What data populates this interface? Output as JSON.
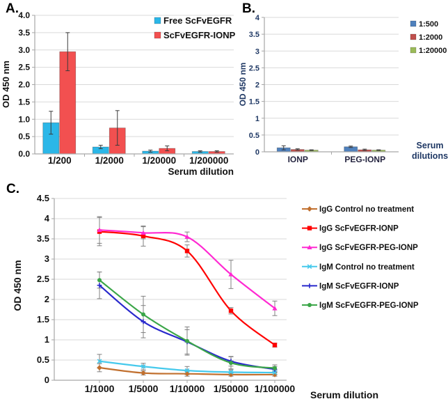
{
  "figure": {
    "panels": {
      "a": {
        "label": "A."
      },
      "b": {
        "label": "B."
      },
      "c": {
        "label": "C."
      }
    }
  },
  "chart_data": [
    {
      "id": "panel-a",
      "type": "bar",
      "title": "",
      "ylabel": "OD 450 nm",
      "xlabel": "Serum dilution",
      "ylim": [
        0,
        4.0
      ],
      "yticks": [
        "0.0",
        "0.5",
        "1.0",
        "1.5",
        "2.0",
        "2.5",
        "3.0",
        "3.5",
        "4.0"
      ],
      "grid": true,
      "legend_position": "inside-top-right",
      "categories": [
        "1/200",
        "1/2000",
        "1/20000",
        "1/200000"
      ],
      "series": [
        {
          "name": "Free ScFvEGFR",
          "color": "#2BB7E8",
          "values": [
            0.9,
            0.2,
            0.08,
            0.07
          ],
          "errors": [
            0.33,
            0.05,
            0.03,
            0.02
          ]
        },
        {
          "name": "ScFvEGFR-IONP",
          "color": "#F25050",
          "values": [
            2.95,
            0.75,
            0.16,
            0.07
          ],
          "errors": [
            0.55,
            0.5,
            0.07,
            0.02
          ]
        }
      ]
    },
    {
      "id": "panel-b",
      "type": "bar",
      "title": "",
      "ylabel": "OD 450 nm",
      "xlabel": "Serum dilutions",
      "ylim": [
        0,
        4
      ],
      "yticks": [
        "0",
        "0.5",
        "1",
        "1.5",
        "2",
        "2.5",
        "3",
        "3.5",
        "4"
      ],
      "grid": true,
      "legend_position": "right",
      "axis_text_color": "#1F3864",
      "categories": [
        "IONP",
        "PEG-IONP"
      ],
      "series": [
        {
          "name": "1:500",
          "color": "#4F81BD",
          "values": [
            0.12,
            0.15
          ],
          "errors": [
            0.06,
            0.02
          ]
        },
        {
          "name": "1:2000",
          "color": "#C0504D",
          "values": [
            0.07,
            0.06
          ],
          "errors": [
            0.02,
            0.02
          ]
        },
        {
          "name": "1:20000",
          "color": "#9BBB59",
          "values": [
            0.05,
            0.05
          ],
          "errors": [
            0.01,
            0.01
          ]
        }
      ]
    },
    {
      "id": "panel-c",
      "type": "line",
      "title": "",
      "ylabel": "OD 450 nm",
      "xlabel": "Serum dilution",
      "ylim": [
        0,
        4.5
      ],
      "yticks": [
        "0",
        "0.5",
        "1",
        "1.5",
        "2",
        "2.5",
        "3",
        "3.5",
        "4",
        "4.5"
      ],
      "grid": true,
      "legend_position": "right",
      "categories": [
        "1/1000",
        "1/5000",
        "1/10000",
        "1/50000",
        "1/100000"
      ],
      "series": [
        {
          "name": "IgG Control no treatment",
          "color": "#C1702F",
          "marker": "diamond",
          "values": [
            0.31,
            0.18,
            0.16,
            0.14,
            0.14
          ],
          "errors": [
            0.1,
            0.05,
            0.06,
            0.04,
            0.04
          ]
        },
        {
          "name": "IgG ScFvEGFR-IONP",
          "color": "#FF0000",
          "marker": "square",
          "values": [
            3.68,
            3.57,
            3.2,
            1.72,
            0.87
          ],
          "errors": [
            0.35,
            0.25,
            0.15,
            0.08,
            0.05
          ]
        },
        {
          "name": "IgG ScFvEGFR-PEG-IONP",
          "color": "#FF29D2",
          "marker": "triangle",
          "values": [
            3.72,
            3.65,
            3.55,
            2.62,
            1.78
          ],
          "errors": [
            0.33,
            0.15,
            0.12,
            0.35,
            0.18
          ]
        },
        {
          "name": "IgM Control no treatment",
          "color": "#45C9EC",
          "marker": "x",
          "values": [
            0.47,
            0.34,
            0.24,
            0.2,
            0.19
          ],
          "errors": [
            0.17,
            0.08,
            0.1,
            0.06,
            0.05
          ]
        },
        {
          "name": "IgM ScFvEGFR-IONP",
          "color": "#2929CC",
          "marker": "plus",
          "values": [
            2.35,
            1.45,
            0.95,
            0.47,
            0.27
          ],
          "errors": [
            0.33,
            0.4,
            0.3,
            0.12,
            0.07
          ]
        },
        {
          "name": "IgM ScFvEGFR-PEG-IONP",
          "color": "#3BA648",
          "marker": "circle",
          "values": [
            2.48,
            1.63,
            0.97,
            0.43,
            0.3
          ],
          "errors": [
            0.2,
            0.45,
            0.35,
            0.15,
            0.08
          ]
        }
      ]
    }
  ]
}
